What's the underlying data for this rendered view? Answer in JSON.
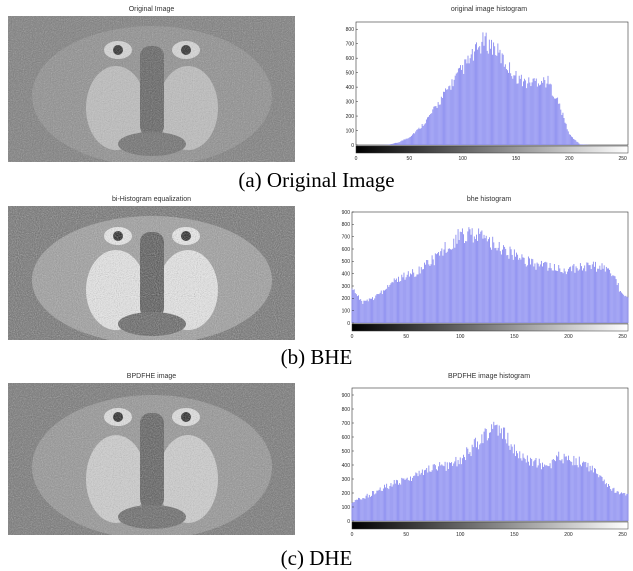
{
  "figure": {
    "rows": [
      {
        "image_title": "Original Image",
        "hist_title": "original image histogram",
        "caption": "(a) Original Image",
        "yticks": [
          "0",
          "100",
          "200",
          "300",
          "400",
          "500",
          "600",
          "700",
          "800"
        ],
        "xticks": [
          "0",
          "50",
          "100",
          "150",
          "200",
          "250"
        ]
      },
      {
        "image_title": "bi-Histogram equalization",
        "hist_title": "bhe histogram",
        "caption": "(b) BHE",
        "yticks": [
          "0",
          "100",
          "200",
          "300",
          "400",
          "500",
          "600",
          "700",
          "800",
          "900"
        ],
        "xticks": [
          "0",
          "50",
          "100",
          "150",
          "200",
          "250"
        ]
      },
      {
        "image_title": "BPDFHE image",
        "hist_title": "BPDFHE image histogram",
        "caption": "(c) DHE",
        "yticks": [
          "0",
          "100",
          "200",
          "300",
          "400",
          "500",
          "600",
          "700",
          "800",
          "900"
        ],
        "xticks": [
          "0",
          "50",
          "100",
          "150",
          "200",
          "250"
        ]
      }
    ]
  },
  "chart_data": [
    {
      "type": "bar",
      "title": "original image histogram",
      "x": [
        0,
        10,
        20,
        30,
        40,
        50,
        60,
        70,
        80,
        90,
        100,
        110,
        120,
        130,
        140,
        150,
        160,
        170,
        180,
        190,
        200,
        210,
        220,
        230,
        240,
        250
      ],
      "values": [
        0,
        0,
        0,
        2,
        20,
        60,
        130,
        230,
        350,
        470,
        580,
        680,
        790,
        740,
        620,
        520,
        470,
        490,
        480,
        320,
        80,
        5,
        0,
        0,
        0,
        0
      ],
      "xlim": [
        0,
        255
      ],
      "ylim": [
        0,
        850
      ],
      "colors": {
        "bars": "#8a8cf0"
      }
    },
    {
      "type": "bar",
      "title": "bhe histogram",
      "x": [
        0,
        10,
        20,
        30,
        40,
        50,
        60,
        70,
        80,
        90,
        100,
        110,
        120,
        130,
        140,
        150,
        160,
        170,
        180,
        190,
        200,
        210,
        220,
        230,
        240,
        250
      ],
      "values": [
        300,
        180,
        220,
        300,
        380,
        420,
        460,
        520,
        600,
        700,
        780,
        800,
        760,
        720,
        660,
        600,
        560,
        520,
        500,
        480,
        480,
        490,
        500,
        500,
        450,
        250
      ],
      "xlim": [
        0,
        255
      ],
      "ylim": [
        0,
        900
      ],
      "colors": {
        "bars": "#8a8cf0"
      }
    },
    {
      "type": "bar",
      "title": "BPDFHE image histogram",
      "x": [
        0,
        10,
        20,
        30,
        40,
        50,
        60,
        70,
        80,
        90,
        100,
        110,
        120,
        130,
        140,
        150,
        160,
        170,
        180,
        190,
        200,
        210,
        220,
        230,
        240,
        250
      ],
      "values": [
        150,
        180,
        220,
        260,
        300,
        320,
        360,
        400,
        420,
        440,
        480,
        560,
        650,
        720,
        700,
        560,
        480,
        460,
        420,
        500,
        480,
        460,
        420,
        330,
        260,
        200
      ],
      "xlim": [
        0,
        255
      ],
      "ylim": [
        0,
        950
      ],
      "colors": {
        "bars": "#8a8cf0"
      }
    }
  ]
}
